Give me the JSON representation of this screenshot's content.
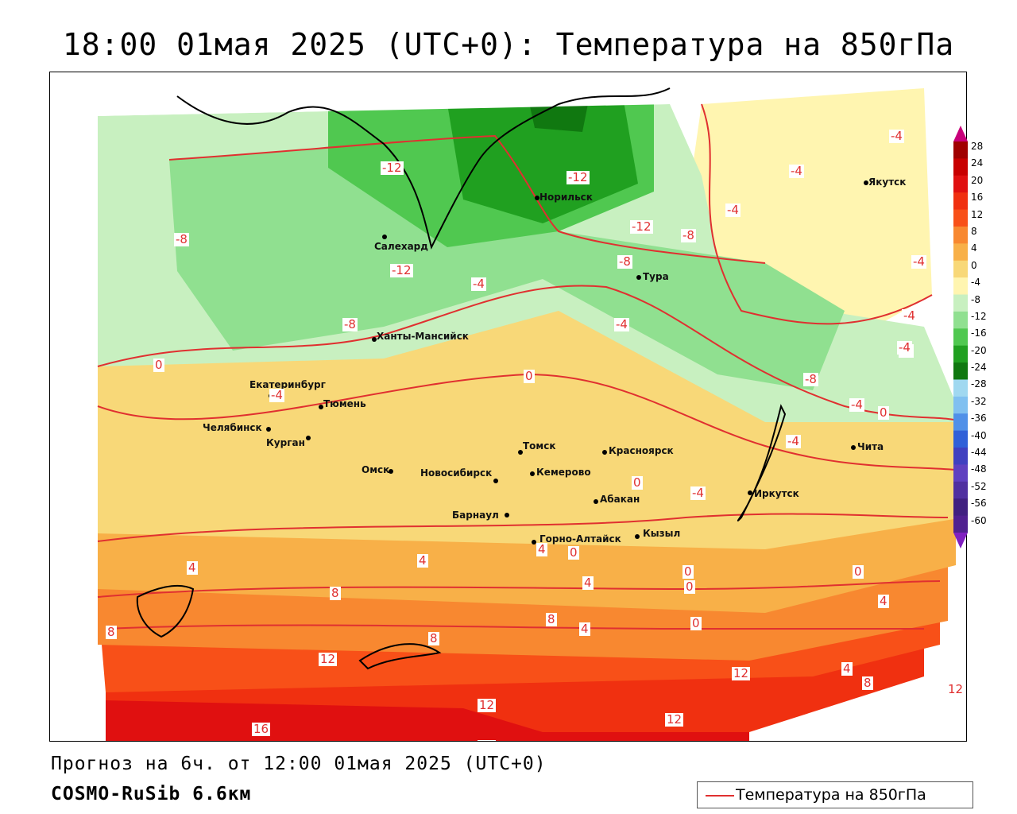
{
  "title": "18:00 01мая 2025 (UTC+0): Температура на 850гПа",
  "forecast_text": "Прогноз на 6ч. от 12:00 01мая 2025 (UTC+0)",
  "model_text": "COSMO-RuSib 6.6км",
  "legend": {
    "label": "Температура на 850гПа",
    "line_color": "#e03030"
  },
  "colorbar": {
    "labels": [
      "28",
      "24",
      "20",
      "16",
      "12",
      "8",
      "4",
      "0",
      "-4",
      "-8",
      "-12",
      "-16",
      "-20",
      "-24",
      "-28",
      "-32",
      "-36",
      "-40",
      "-44",
      "-48",
      "-52",
      "-56",
      "-60"
    ],
    "colors": [
      "#a00000",
      "#c80000",
      "#e01010",
      "#f03010",
      "#f85018",
      "#f88830",
      "#f8b048",
      "#f8d878",
      "#fff5b0",
      "#c8f0c0",
      "#90e090",
      "#50c850",
      "#20a020",
      "#107810",
      "#a0d8f0",
      "#80c0f0",
      "#5090e8",
      "#3060d8",
      "#4040c0",
      "#6040c0",
      "#5030a0",
      "#402080",
      "#502090"
    ]
  },
  "cities": [
    {
      "name": "Якутск"
    },
    {
      "name": "Норильск"
    },
    {
      "name": "Салехард"
    },
    {
      "name": "Тура"
    },
    {
      "name": "Ханты-Мансийск"
    },
    {
      "name": "Екатеринбург"
    },
    {
      "name": "Тюмень"
    },
    {
      "name": "Челябинск"
    },
    {
      "name": "Курган"
    },
    {
      "name": "Омск"
    },
    {
      "name": "Новосибирск"
    },
    {
      "name": "Томск"
    },
    {
      "name": "Кемерово"
    },
    {
      "name": "Красноярск"
    },
    {
      "name": "Барнаул"
    },
    {
      "name": "Абакан"
    },
    {
      "name": "Горно-Алтайск"
    },
    {
      "name": "Кызыл"
    },
    {
      "name": "Иркутск"
    },
    {
      "name": "Чита"
    }
  ],
  "contour_labels": [
    "-12",
    "-12",
    "-8",
    "-12",
    "-12",
    "-8",
    "-8",
    "-4",
    "-4",
    "-4",
    "-4",
    "-4",
    "-4",
    "-4",
    "-4",
    "-8",
    "-4",
    "-8",
    "0",
    "-4",
    "0",
    "0",
    "0",
    "-4",
    "-4",
    "-4",
    "0",
    "4",
    "4",
    "4",
    "4",
    "0",
    "0",
    "0",
    "0",
    "4",
    "4",
    "8",
    "8",
    "8",
    "8",
    "12",
    "12",
    "12",
    "12",
    "12",
    "16",
    "4",
    "8",
    "12"
  ]
}
